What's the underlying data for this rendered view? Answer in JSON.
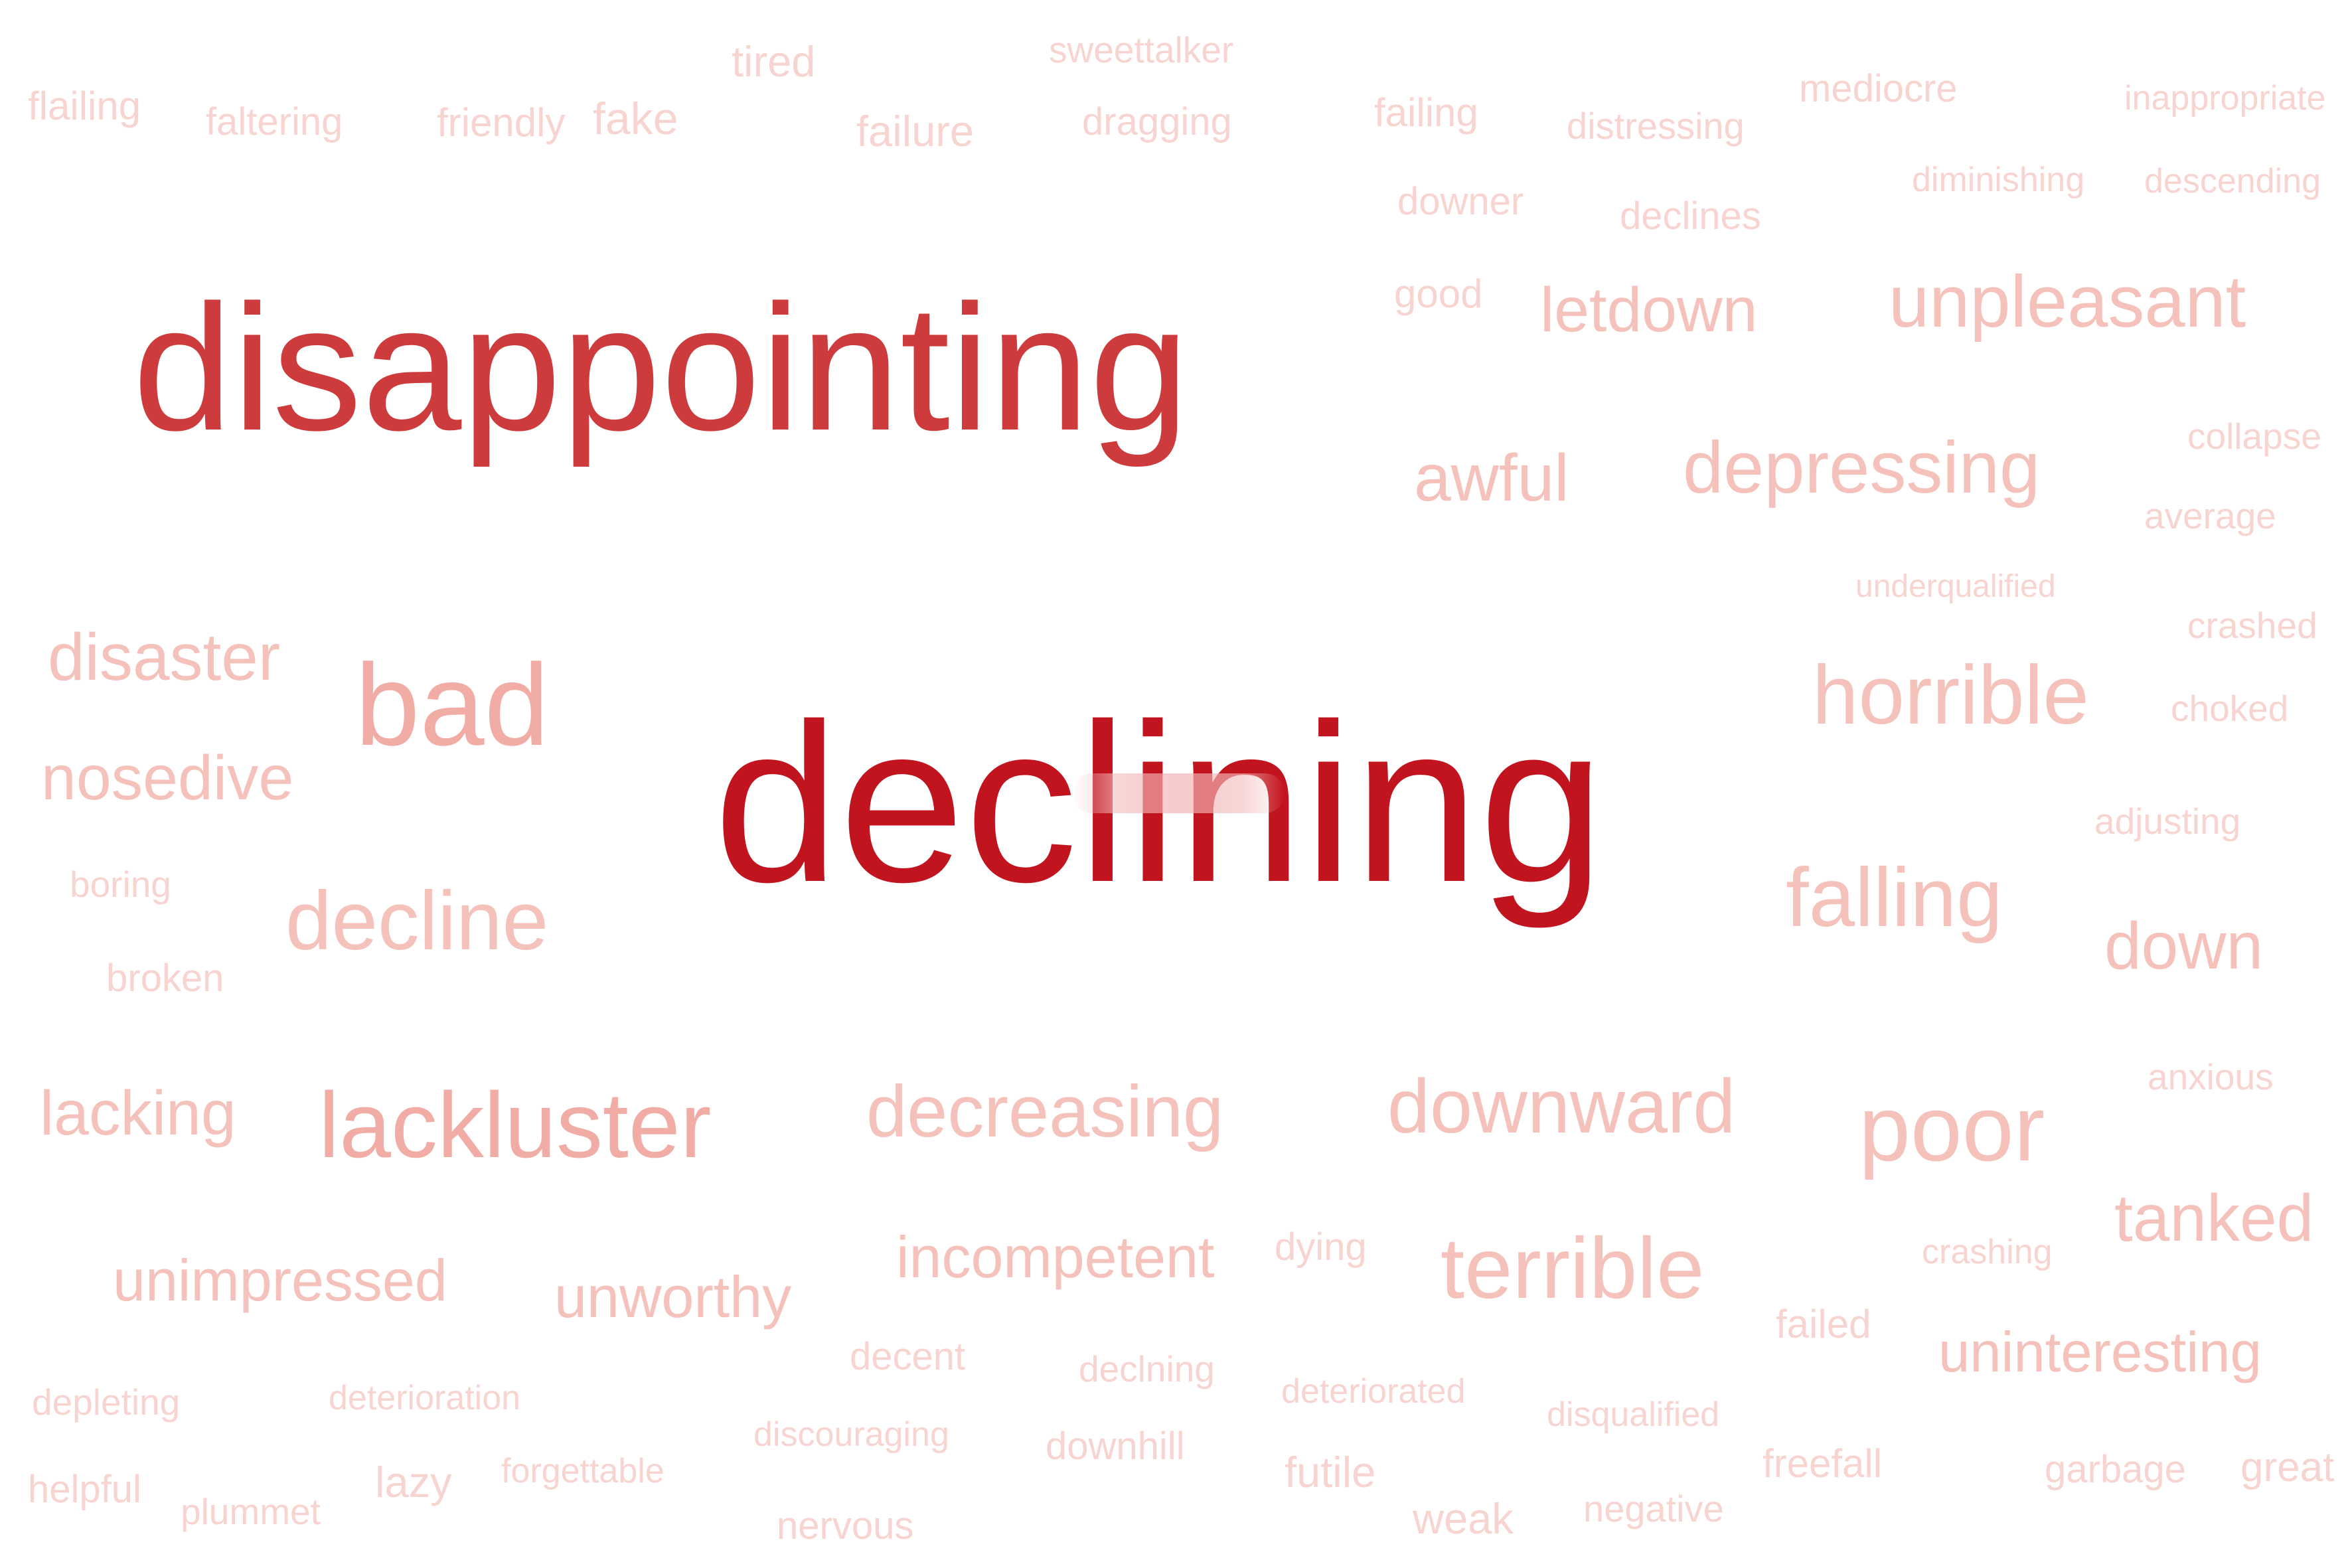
{
  "colors": {
    "strongest": "#c2141f",
    "strong": "#cd3b3c",
    "medium": "#f2aca6",
    "light": "#f5c1bb",
    "faint": "#f8d4d0",
    "background": "#ffffff"
  },
  "words": [
    {
      "text": "declining",
      "tone": "strongest"
    },
    {
      "text": "disappointing",
      "tone": "strong"
    },
    {
      "text": "bad",
      "tone": "medium"
    },
    {
      "text": "lackluster",
      "tone": "medium"
    },
    {
      "text": "decline",
      "tone": "light"
    },
    {
      "text": "disaster",
      "tone": "light"
    },
    {
      "text": "nosedive",
      "tone": "light"
    },
    {
      "text": "lacking",
      "tone": "light"
    },
    {
      "text": "unimpressed",
      "tone": "light"
    },
    {
      "text": "unworthy",
      "tone": "light"
    },
    {
      "text": "decreasing",
      "tone": "light"
    },
    {
      "text": "incompetent",
      "tone": "light"
    },
    {
      "text": "downward",
      "tone": "light"
    },
    {
      "text": "poor",
      "tone": "light"
    },
    {
      "text": "terrible",
      "tone": "light"
    },
    {
      "text": "horrible",
      "tone": "light"
    },
    {
      "text": "falling",
      "tone": "light"
    },
    {
      "text": "down",
      "tone": "light"
    },
    {
      "text": "tanked",
      "tone": "light"
    },
    {
      "text": "uninteresting",
      "tone": "light"
    },
    {
      "text": "unpleasant",
      "tone": "light"
    },
    {
      "text": "depressing",
      "tone": "light"
    },
    {
      "text": "letdown",
      "tone": "light"
    },
    {
      "text": "awful",
      "tone": "light"
    },
    {
      "text": "flailing",
      "tone": "faint"
    },
    {
      "text": "faltering",
      "tone": "faint"
    },
    {
      "text": "friendly",
      "tone": "faint"
    },
    {
      "text": "fake",
      "tone": "faint"
    },
    {
      "text": "tired",
      "tone": "faint"
    },
    {
      "text": "failure",
      "tone": "faint"
    },
    {
      "text": "sweettalker",
      "tone": "faint"
    },
    {
      "text": "dragging",
      "tone": "faint"
    },
    {
      "text": "failing",
      "tone": "faint"
    },
    {
      "text": "distressing",
      "tone": "faint"
    },
    {
      "text": "mediocre",
      "tone": "faint"
    },
    {
      "text": "inappropriate",
      "tone": "faint"
    },
    {
      "text": "diminishing",
      "tone": "faint"
    },
    {
      "text": "descending",
      "tone": "faint"
    },
    {
      "text": "downer",
      "tone": "faint"
    },
    {
      "text": "declines",
      "tone": "faint"
    },
    {
      "text": "good",
      "tone": "faint"
    },
    {
      "text": "collapse",
      "tone": "faint"
    },
    {
      "text": "average",
      "tone": "faint"
    },
    {
      "text": "underqualified",
      "tone": "faint"
    },
    {
      "text": "crashed",
      "tone": "faint"
    },
    {
      "text": "choked",
      "tone": "faint"
    },
    {
      "text": "adjusting",
      "tone": "faint"
    },
    {
      "text": "boring",
      "tone": "faint"
    },
    {
      "text": "broken",
      "tone": "faint"
    },
    {
      "text": "anxious",
      "tone": "faint"
    },
    {
      "text": "crashing",
      "tone": "faint"
    },
    {
      "text": "dying",
      "tone": "faint"
    },
    {
      "text": "failed",
      "tone": "faint"
    },
    {
      "text": "decent",
      "tone": "faint"
    },
    {
      "text": "declning",
      "tone": "faint"
    },
    {
      "text": "deteriorated",
      "tone": "faint"
    },
    {
      "text": "disqualified",
      "tone": "faint"
    },
    {
      "text": "depleting",
      "tone": "faint"
    },
    {
      "text": "deterioration",
      "tone": "faint"
    },
    {
      "text": "discouraging",
      "tone": "faint"
    },
    {
      "text": "downhill",
      "tone": "faint"
    },
    {
      "text": "futile",
      "tone": "faint"
    },
    {
      "text": "freefall",
      "tone": "faint"
    },
    {
      "text": "garbage",
      "tone": "faint"
    },
    {
      "text": "great",
      "tone": "faint"
    },
    {
      "text": "helpful",
      "tone": "faint"
    },
    {
      "text": "plummet",
      "tone": "faint"
    },
    {
      "text": "lazy",
      "tone": "faint"
    },
    {
      "text": "forgettable",
      "tone": "faint"
    },
    {
      "text": "nervous",
      "tone": "faint"
    },
    {
      "text": "weak",
      "tone": "faint"
    },
    {
      "text": "negative",
      "tone": "faint"
    }
  ]
}
